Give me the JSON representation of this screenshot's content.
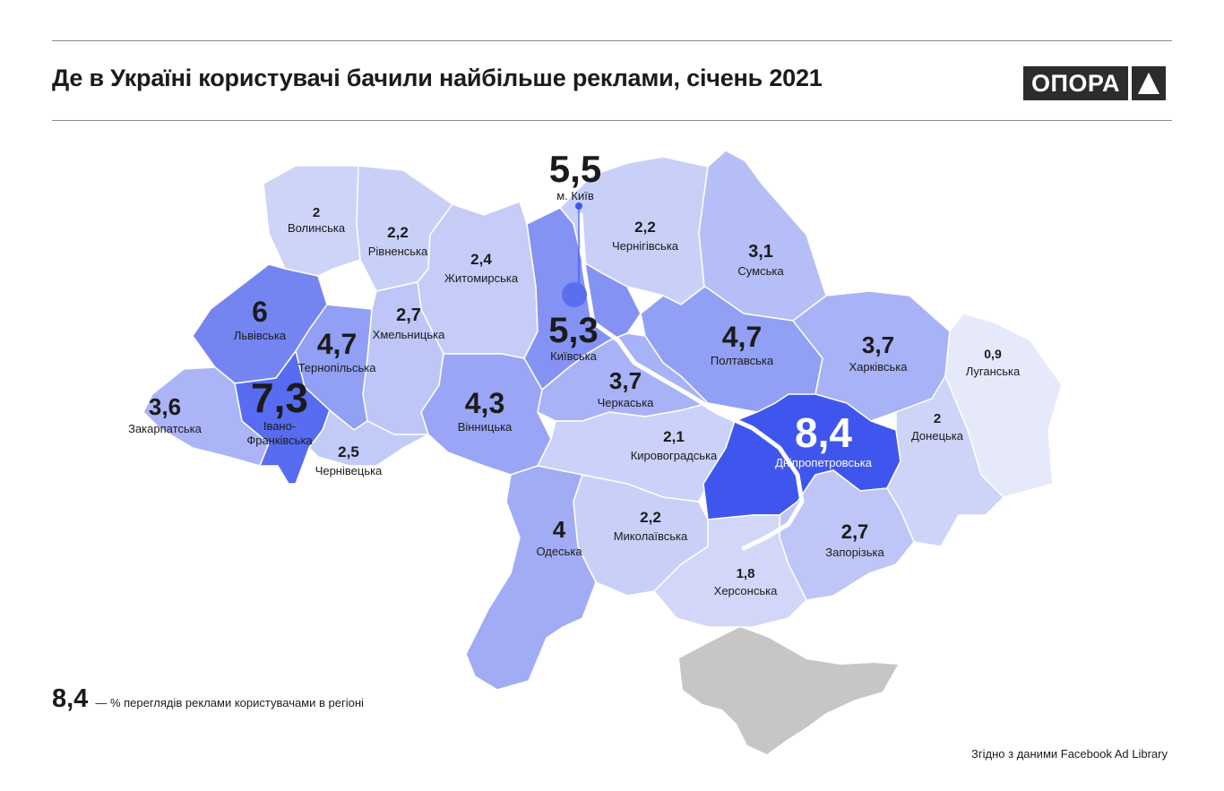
{
  "header": {
    "title": "Де в Україні користувачі бачили  найбільше реклами, січень 2021",
    "logo_text": "ОПОРА",
    "logo_icon": "triangle-icon"
  },
  "regions": [
    {
      "id": "volyn",
      "name": "Волинська",
      "value": "2"
    },
    {
      "id": "rivne",
      "name": "Рівненська",
      "value": "2,2"
    },
    {
      "id": "zhytomyr",
      "name": "Житомирська",
      "value": "2,4"
    },
    {
      "id": "chernihiv",
      "name": "Чернігівська",
      "value": "2,2"
    },
    {
      "id": "sumy",
      "name": "Сумська",
      "value": "3,1"
    },
    {
      "id": "lviv",
      "name": "Львівська",
      "value": "6"
    },
    {
      "id": "khmelnytskyi",
      "name": "Хмельницька",
      "value": "2,7"
    },
    {
      "id": "ternopil",
      "name": "Тернопільська",
      "value": "4,7"
    },
    {
      "id": "kyivska",
      "name": "Київська",
      "value": "5,3"
    },
    {
      "id": "poltava",
      "name": "Полтавська",
      "value": "4,7"
    },
    {
      "id": "kharkiv",
      "name": "Харківська",
      "value": "3,7"
    },
    {
      "id": "luhansk",
      "name": "Луганська",
      "value": "0,9"
    },
    {
      "id": "cherkasy",
      "name": "Черкаська",
      "value": "3,7"
    },
    {
      "id": "zakarpattia",
      "name": "Закарпатська",
      "value": "3,6"
    },
    {
      "id": "ivano_frankivsk",
      "name": "Івано-\nФранківська",
      "value": "7,3"
    },
    {
      "id": "vinnytsia",
      "name": "Вінницька",
      "value": "4,3"
    },
    {
      "id": "chernivtsi",
      "name": "Чернівецька",
      "value": "2,5"
    },
    {
      "id": "kirovohrad",
      "name": "Кировоградська",
      "value": "2,1"
    },
    {
      "id": "dnipro",
      "name": "Дніпропетровська",
      "value": "8,4"
    },
    {
      "id": "donetsk",
      "name": "Донецька",
      "value": "2"
    },
    {
      "id": "odesa",
      "name": "Одеська",
      "value": "4"
    },
    {
      "id": "mykolaiv",
      "name": "Миколаївська",
      "value": "2,2"
    },
    {
      "id": "zaporizhzhia",
      "name": "Запорізька",
      "value": "2,7"
    },
    {
      "id": "kherson",
      "name": "Херсонська",
      "value": "1,8"
    },
    {
      "id": "kyiv_city",
      "name": "м. Київ",
      "value": "5,5"
    }
  ],
  "legend": {
    "value": "8,4",
    "text": "— % переглядів реклами користувачами в регіоні"
  },
  "source": "Згідно з даними Facebook Ad Library",
  "colors": {
    "scale_low": "#e6e9fa",
    "scale_high": "#3f56ee",
    "crimea": "#c6c6c6",
    "text_dark": "#1b1b1b",
    "text_light": "#ffffff"
  }
}
